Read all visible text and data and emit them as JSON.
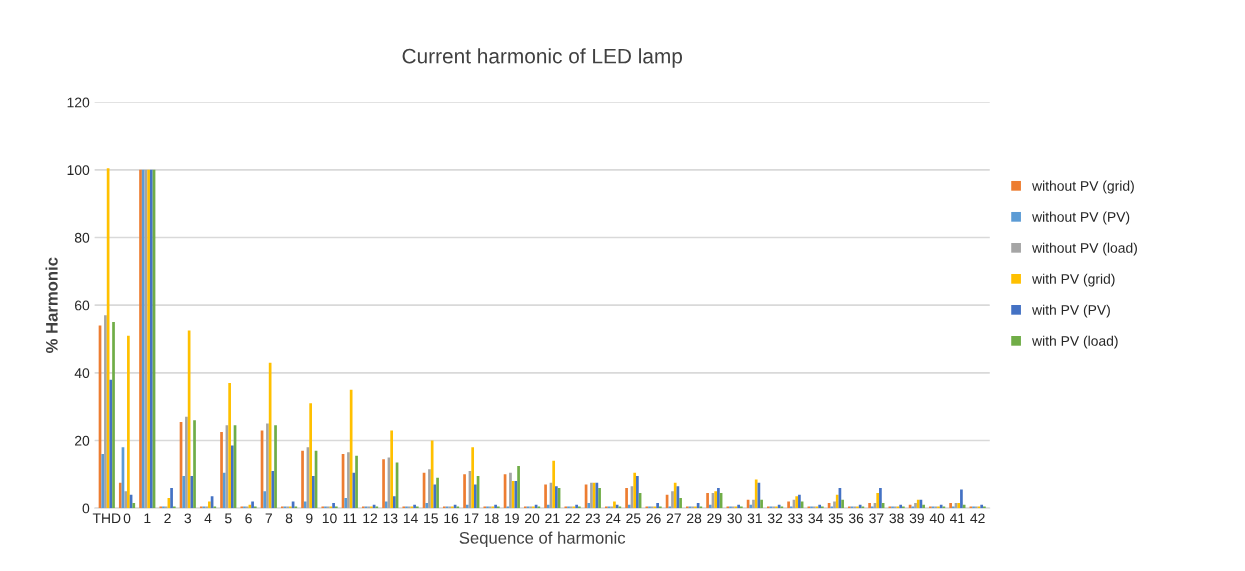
{
  "chart_data": {
    "type": "bar",
    "title": "Current harmonic of LED lamp",
    "xlabel": "Sequence of harmonic",
    "ylabel": "% Harmonic",
    "categories": [
      "THD",
      "0",
      "1",
      "2",
      "3",
      "4",
      "5",
      "6",
      "7",
      "8",
      "9",
      "10",
      "11",
      "12",
      "13",
      "14",
      "15",
      "16",
      "17",
      "18",
      "19",
      "20",
      "21",
      "22",
      "23",
      "24",
      "25",
      "26",
      "27",
      "28",
      "29",
      "30",
      "31",
      "32",
      "33",
      "34",
      "35",
      "36",
      "37",
      "38",
      "39",
      "40",
      "41",
      "42"
    ],
    "series": [
      {
        "name": "without PV (grid)",
        "color": "#ed7d31",
        "values": [
          54,
          7.5,
          100,
          0.5,
          25.5,
          0.5,
          22.5,
          0.5,
          23,
          0.5,
          17,
          0.5,
          16,
          0.5,
          14.5,
          0.5,
          10.5,
          0.5,
          10,
          0.5,
          10,
          0.5,
          7,
          0.5,
          7,
          0.5,
          6,
          0.5,
          4,
          0.5,
          4.5,
          0.5,
          2.5,
          0.5,
          2,
          0.5,
          1.5,
          0.5,
          1.5,
          0.5,
          1,
          0.5,
          1.5,
          0.5
        ]
      },
      {
        "name": "without PV (PV)",
        "color": "#5b9bd5",
        "values": [
          16,
          18,
          100,
          0.5,
          9.5,
          0.5,
          10.5,
          0.5,
          5,
          0.5,
          2,
          0.5,
          3,
          0.5,
          2,
          0.5,
          1.5,
          0.5,
          1,
          0.5,
          0.5,
          0.5,
          1,
          0.5,
          1.5,
          0.5,
          1,
          0.5,
          0.5,
          0.5,
          1,
          0.5,
          1,
          0.5,
          0.5,
          0.5,
          0.5,
          0.5,
          0.5,
          0.5,
          0.5,
          0.5,
          0.5,
          0.5
        ]
      },
      {
        "name": "without PV (load)",
        "color": "#a5a5a5",
        "values": [
          57,
          5,
          100,
          0.5,
          27,
          0.5,
          24.5,
          0.5,
          25,
          0.5,
          18,
          0.5,
          16.5,
          0.5,
          15,
          0.5,
          11.5,
          0.5,
          11,
          0.5,
          10.5,
          0.5,
          7.5,
          0.5,
          7.5,
          0.5,
          6.5,
          0.5,
          5,
          0.5,
          4.5,
          0.5,
          2.5,
          0.5,
          2.5,
          0.5,
          2,
          0.5,
          1.5,
          0.5,
          1.5,
          0.5,
          1.5,
          0.5
        ]
      },
      {
        "name": "with PV (grid)",
        "color": "#ffc000",
        "values": [
          100.5,
          51,
          100,
          3,
          52.5,
          2,
          37,
          1,
          43,
          0.5,
          31,
          0.5,
          35,
          0.5,
          23,
          0.5,
          20,
          0.5,
          18,
          0.5,
          8,
          0.5,
          14,
          0.5,
          7.5,
          2,
          10.5,
          0.5,
          7.5,
          0.5,
          5,
          0.5,
          8.5,
          0.5,
          3.5,
          0.5,
          4,
          0.5,
          4.5,
          0.5,
          2.5,
          0.5,
          1.5,
          0.5
        ]
      },
      {
        "name": "with PV (PV)",
        "color": "#4472c4",
        "values": [
          38,
          4,
          100,
          6,
          9.5,
          3.5,
          18.5,
          2,
          11,
          2,
          9.5,
          1.5,
          10.5,
          1,
          3.5,
          1,
          7,
          1,
          7,
          1,
          8,
          1,
          6.5,
          1,
          7.5,
          1,
          9.5,
          1.5,
          6.5,
          1.5,
          6,
          1,
          7.5,
          1,
          4,
          1,
          6,
          1,
          6,
          1,
          2.5,
          1,
          5.5,
          1
        ]
      },
      {
        "name": "with PV (load)",
        "color": "#70ad47",
        "values": [
          55,
          1.5,
          100,
          0.5,
          26,
          0.5,
          24.5,
          0.5,
          24.5,
          0.5,
          17,
          0.5,
          15.5,
          0.5,
          13.5,
          0.5,
          9,
          0.5,
          9.5,
          0.5,
          12.5,
          0.5,
          6,
          0.5,
          6,
          0.5,
          4.5,
          0.5,
          3,
          0.5,
          4.5,
          0.5,
          2.5,
          0.5,
          2,
          0.5,
          2.5,
          0.5,
          1.5,
          0.5,
          1,
          0.5,
          1,
          0.5
        ]
      }
    ],
    "ylim": [
      0,
      120
    ],
    "yticks": [
      0,
      20,
      40,
      60,
      80,
      100,
      120
    ],
    "grid": "y",
    "legend": "right"
  }
}
